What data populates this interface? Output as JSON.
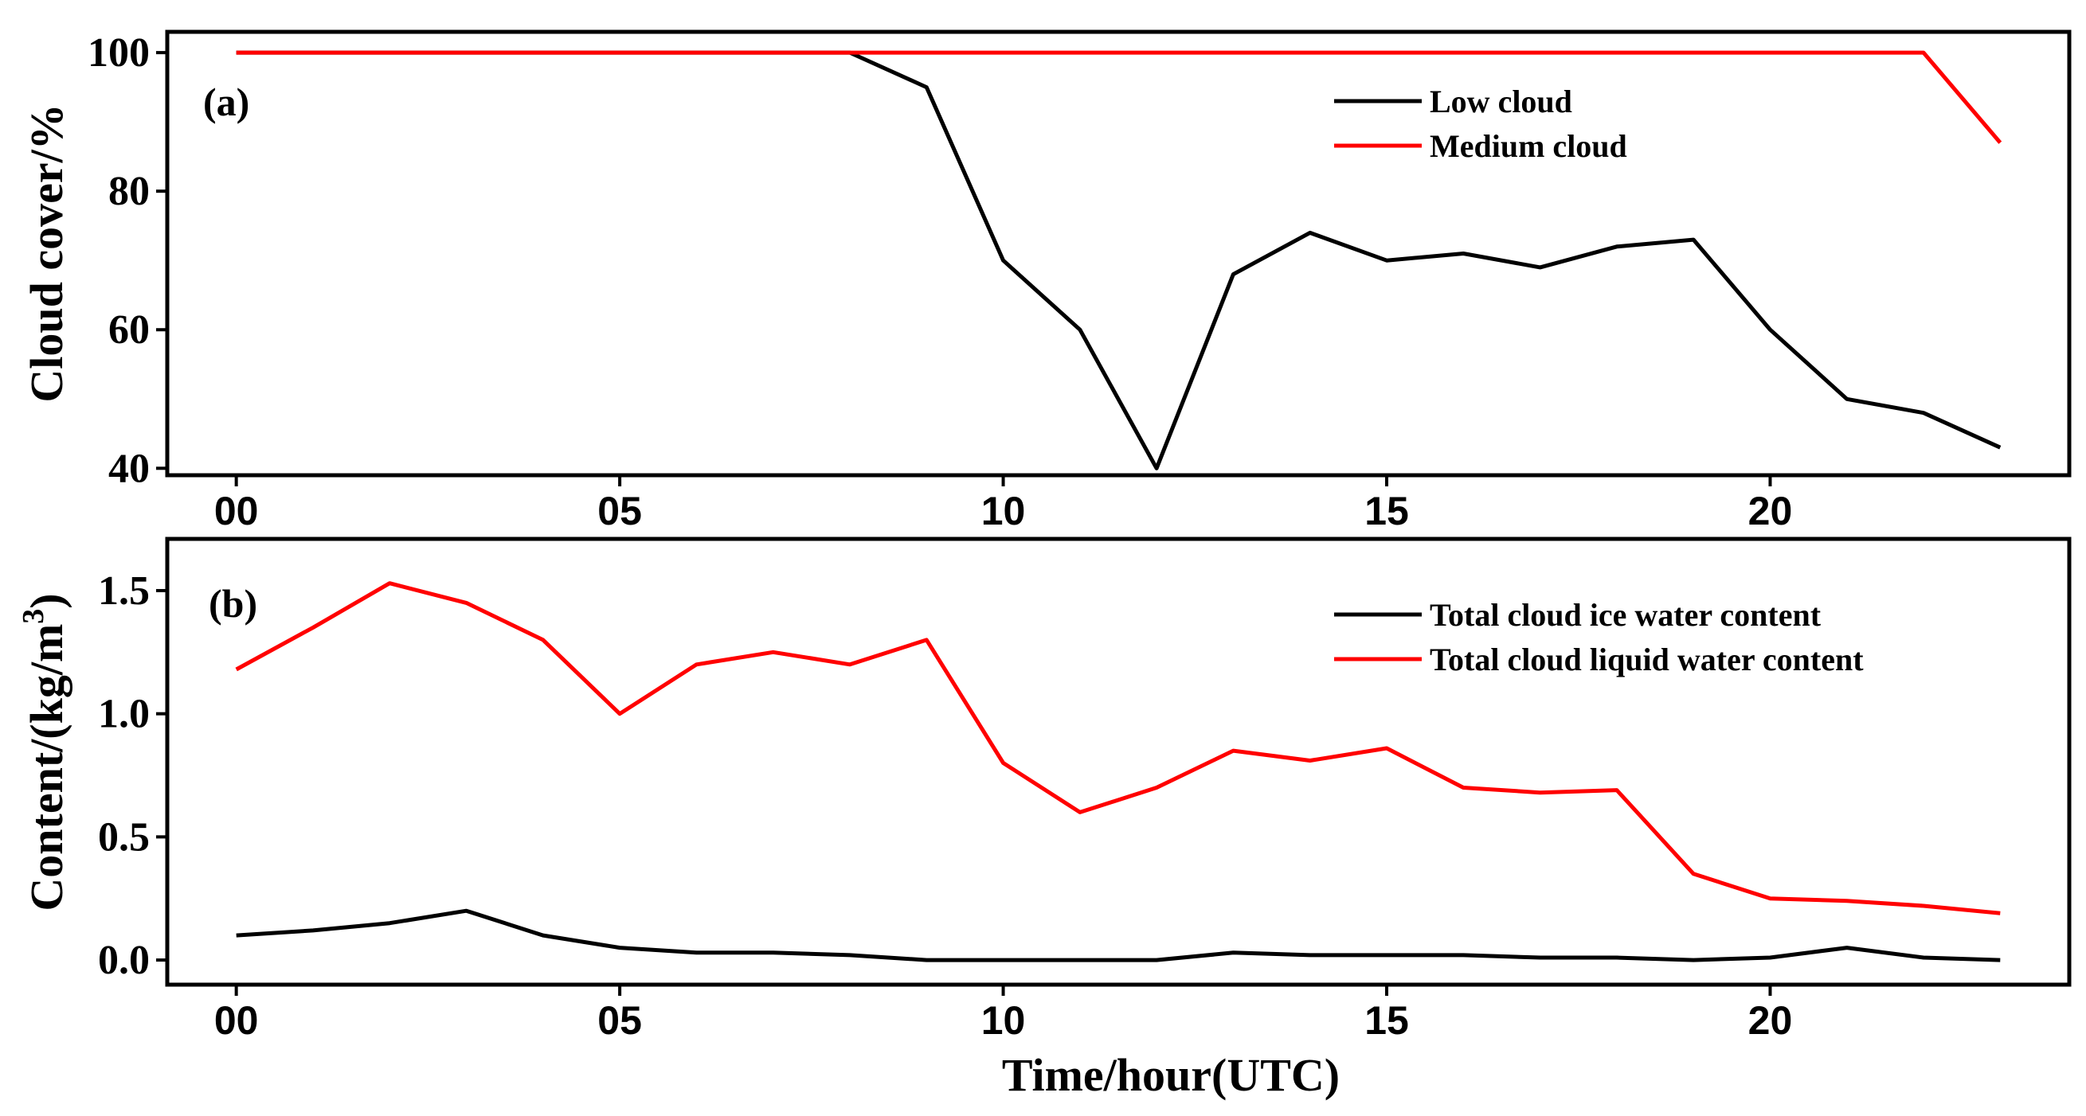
{
  "chart_data": [
    {
      "type": "line",
      "panel_label": "(a)",
      "title": "",
      "xlabel": "",
      "ylabel": "Cloud cover/%",
      "x": [
        0,
        1,
        2,
        3,
        4,
        5,
        6,
        7,
        8,
        9,
        10,
        11,
        12,
        13,
        14,
        15,
        16,
        17,
        18,
        19,
        20,
        21,
        22,
        23
      ],
      "xticks": [
        0,
        5,
        10,
        15,
        20
      ],
      "xtick_labels": [
        "00",
        "05",
        "10",
        "15",
        "20"
      ],
      "xlim": [
        -0.9,
        23.9
      ],
      "ylim": [
        39,
        103
      ],
      "yticks": [
        40,
        60,
        80,
        100
      ],
      "ytick_labels": [
        "40",
        "60",
        "80",
        "100"
      ],
      "legend_position": "top-right",
      "grid": false,
      "series": [
        {
          "name": "Low cloud",
          "color": "#000000",
          "values": [
            100,
            100,
            100,
            100,
            100,
            100,
            100,
            100,
            100,
            95,
            70,
            60,
            40,
            68,
            74,
            70,
            71,
            69,
            72,
            73,
            60,
            50,
            48,
            43
          ]
        },
        {
          "name": "Medium cloud",
          "color": "#ff0000",
          "values": [
            100,
            100,
            100,
            100,
            100,
            100,
            100,
            100,
            100,
            100,
            100,
            100,
            100,
            100,
            100,
            100,
            100,
            100,
            100,
            100,
            100,
            100,
            100,
            87
          ]
        }
      ]
    },
    {
      "type": "line",
      "panel_label": "(b)",
      "title": "",
      "xlabel": "Time/hour(UTC)",
      "ylabel": "Content/(kg/m",
      "ylabel_sup": "3",
      "ylabel_end": ")",
      "x": [
        0,
        1,
        2,
        3,
        4,
        5,
        6,
        7,
        8,
        9,
        10,
        11,
        12,
        13,
        14,
        15,
        16,
        17,
        18,
        19,
        20,
        21,
        22,
        23
      ],
      "xticks": [
        0,
        5,
        10,
        15,
        20
      ],
      "xtick_labels": [
        "00",
        "05",
        "10",
        "15",
        "20"
      ],
      "xlim": [
        -0.9,
        23.9
      ],
      "ylim": [
        -0.1,
        1.71
      ],
      "yticks": [
        0.0,
        0.5,
        1.0,
        1.5
      ],
      "ytick_labels": [
        "0.0",
        "0.5",
        "1.0",
        "1.5"
      ],
      "legend_position": "top-right",
      "grid": false,
      "series": [
        {
          "name": "Total cloud ice water content",
          "color": "#000000",
          "values": [
            0.1,
            0.12,
            0.15,
            0.2,
            0.1,
            0.05,
            0.03,
            0.03,
            0.02,
            0.0,
            0.0,
            0.0,
            0.0,
            0.03,
            0.02,
            0.02,
            0.02,
            0.01,
            0.01,
            0.0,
            0.01,
            0.05,
            0.01,
            0.0
          ]
        },
        {
          "name": "Total cloud liquid water content",
          "color": "#ff0000",
          "values": [
            1.18,
            1.35,
            1.53,
            1.45,
            1.3,
            1.0,
            1.2,
            1.25,
            1.2,
            1.3,
            0.8,
            0.6,
            0.7,
            0.85,
            0.81,
            0.86,
            0.7,
            0.68,
            0.69,
            0.35,
            0.25,
            0.24,
            0.22,
            0.19
          ]
        }
      ]
    }
  ]
}
